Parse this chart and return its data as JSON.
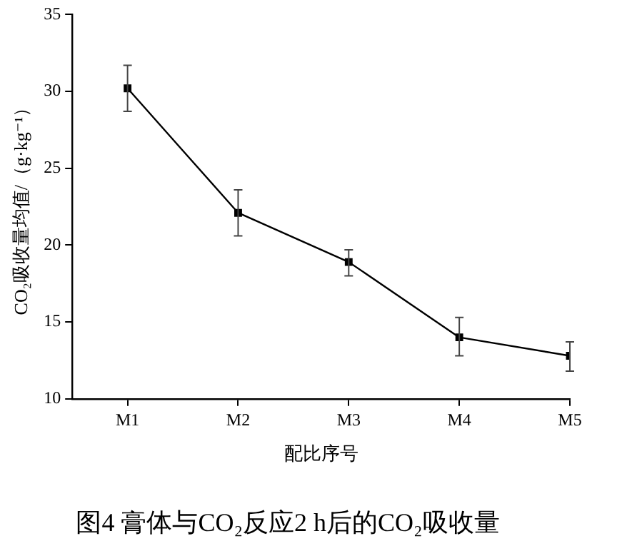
{
  "chart_data": {
    "type": "line",
    "title": "图4 膏体与CO₂反应2 h后的CO₂吸收量",
    "xlabel": "配比序号",
    "ylabel": "CO₂吸收量均值/（g·kg⁻¹）",
    "categories": [
      "M1",
      "M2",
      "M3",
      "M4",
      "M5"
    ],
    "series": [
      {
        "color": "#000000",
        "values": [
          30.2,
          22.1,
          18.9,
          14.0,
          12.8
        ],
        "errors": [
          [
            28.7,
            31.7
          ],
          [
            20.6,
            23.6
          ],
          [
            18.0,
            19.7
          ],
          [
            12.8,
            15.3
          ],
          [
            11.8,
            13.7
          ]
        ]
      }
    ],
    "ylim": [
      10,
      35
    ],
    "yticks": [
      10,
      15,
      20,
      25,
      30,
      35
    ],
    "grid": false,
    "legend": false,
    "marker": "square",
    "line_style": "solid"
  }
}
